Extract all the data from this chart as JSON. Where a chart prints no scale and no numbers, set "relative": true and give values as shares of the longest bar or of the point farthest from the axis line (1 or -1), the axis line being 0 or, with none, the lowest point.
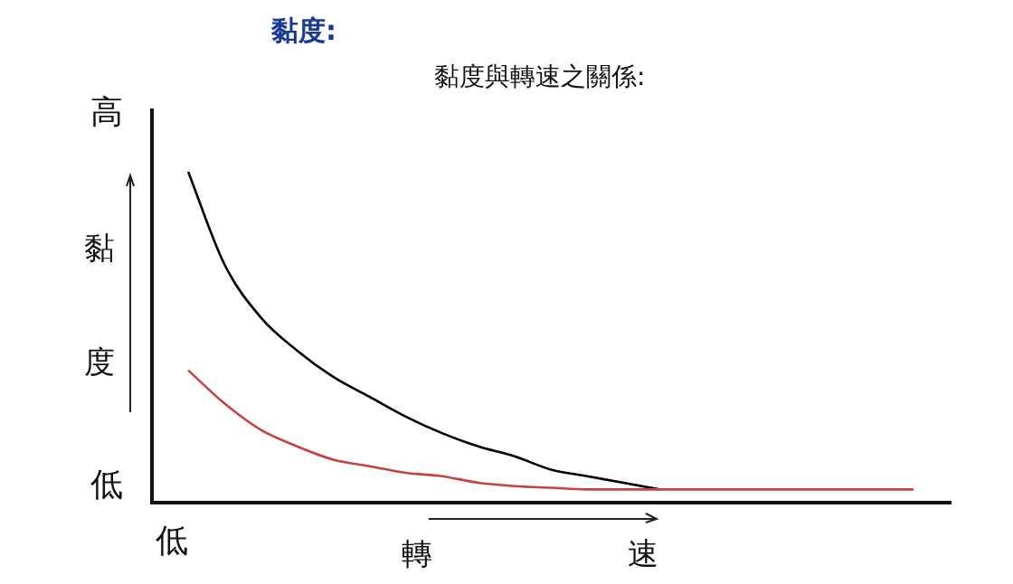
{
  "chart_data": {
    "type": "line",
    "title": "黏度:",
    "subtitle": "黏度與轉速之關係:",
    "xlabel": "轉速",
    "ylabel": "黏度",
    "annotations": [
      "高",
      "低",
      "低"
    ],
    "relative": true,
    "categories": [
      null,
      null,
      null,
      null,
      null,
      null,
      null,
      null,
      null,
      null,
      null,
      null,
      null,
      null,
      null,
      null,
      null,
      null,
      null,
      null,
      null,
      null,
      null
    ],
    "series": [
      {
        "color": "#000000",
        "values": [
          null,
          1.0,
          0.72,
          0.56,
          0.46,
          0.38,
          0.32,
          0.26,
          0.21,
          0.17,
          0.14,
          0.1,
          0.08,
          0.06,
          0.04,
          null,
          null,
          null,
          null,
          null,
          null,
          null,
          null
        ]
      },
      {
        "color": "#c8403f",
        "values": [
          null,
          0.4,
          0.3,
          0.22,
          0.17,
          0.13,
          0.11,
          0.09,
          0.08,
          0.06,
          0.05,
          0.045,
          0.04,
          0.04,
          0.04,
          0.04,
          0.04,
          0.04,
          0.04,
          0.04,
          0.04,
          0.04,
          null
        ]
      }
    ]
  }
}
